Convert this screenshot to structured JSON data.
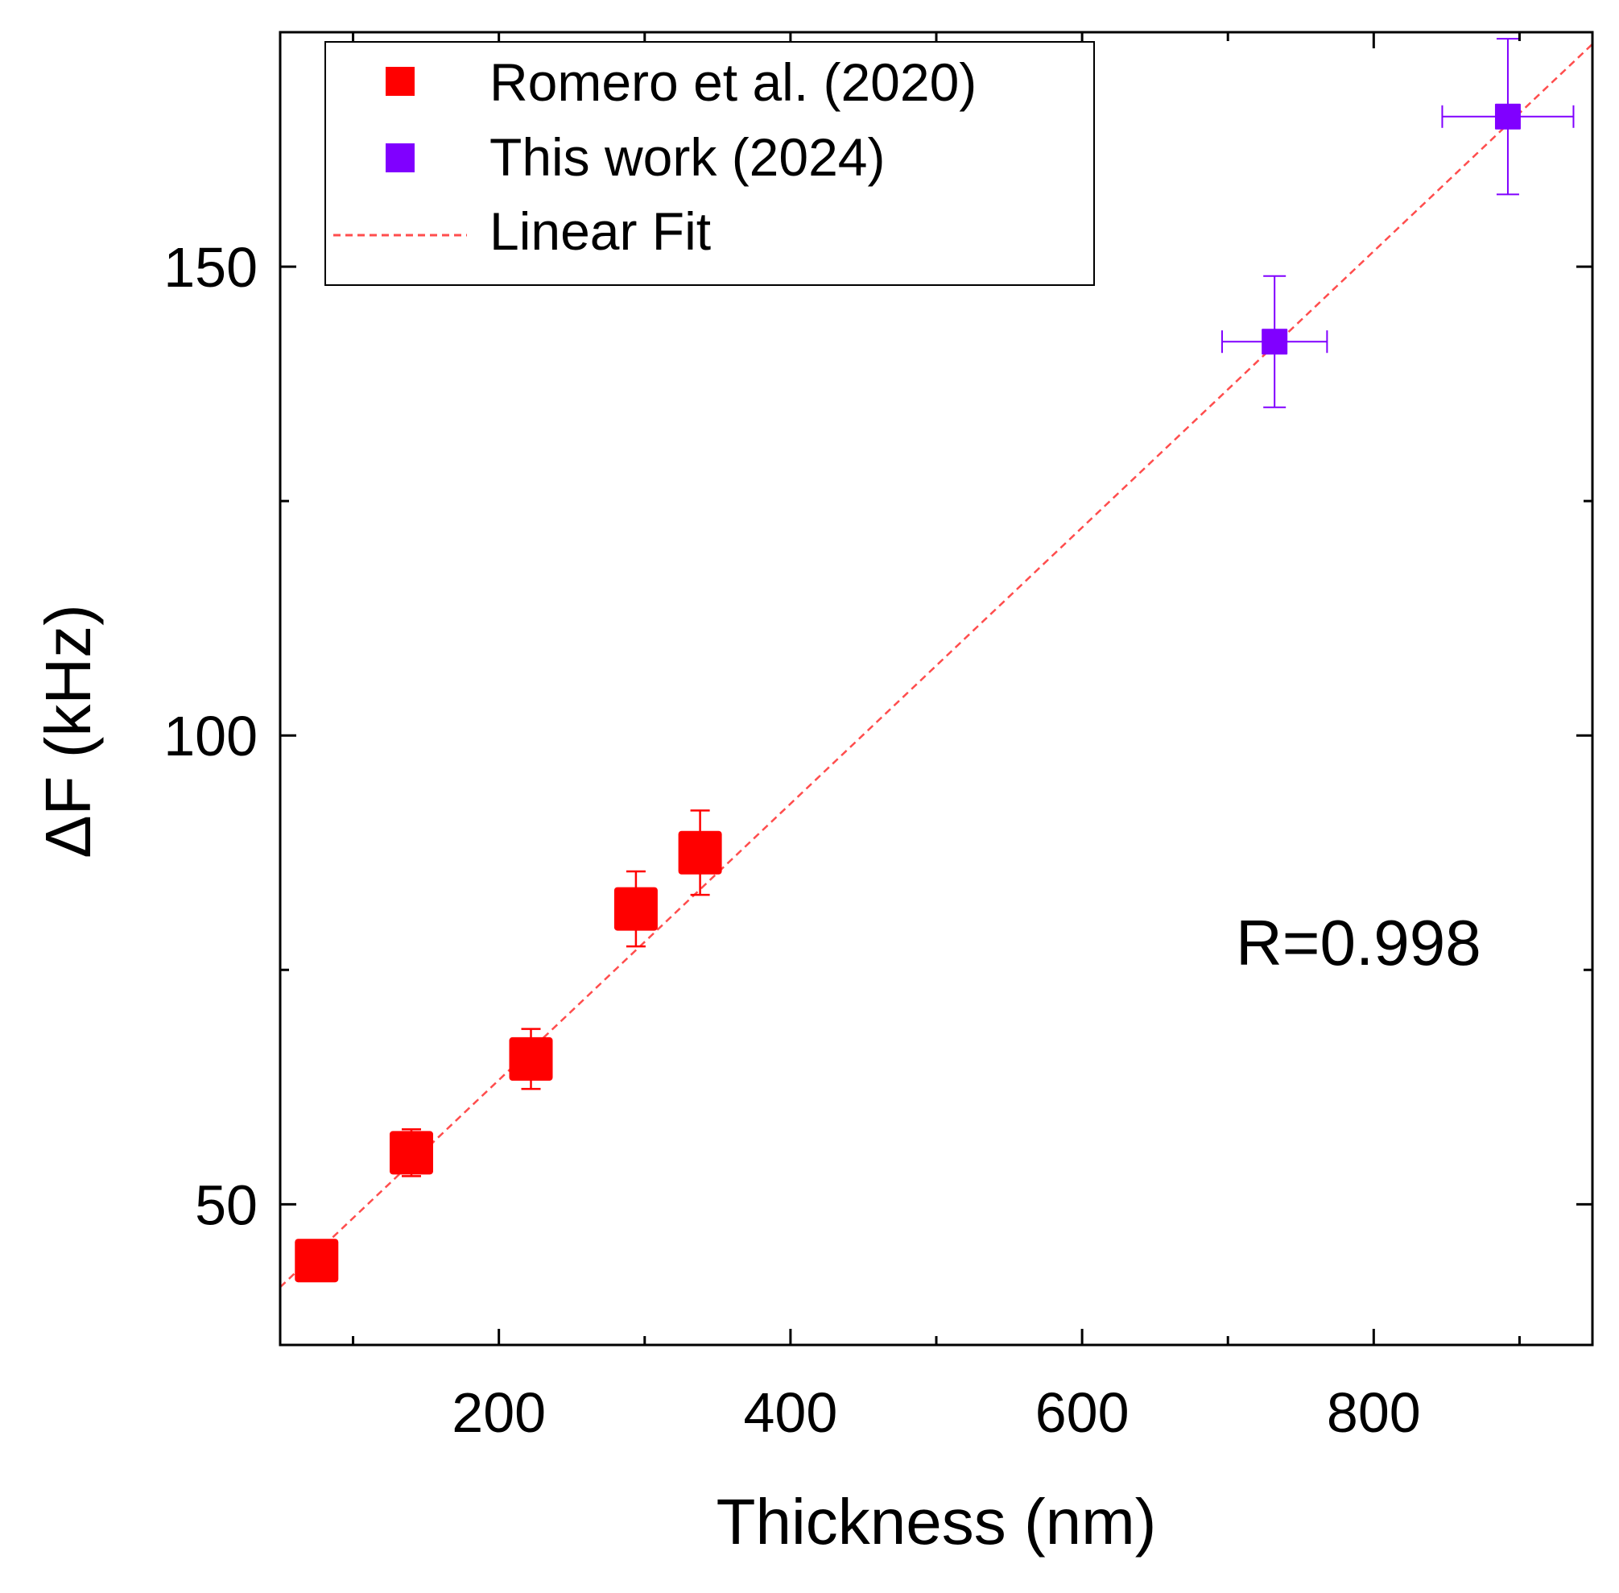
{
  "chart_data": {
    "type": "scatter",
    "title": "",
    "xlabel": "Thickness (nm)",
    "ylabel": "ΔF (kHz)",
    "xlim": [
      50,
      950
    ],
    "ylim": [
      35,
      175
    ],
    "x_major_ticks": [
      200,
      400,
      600,
      800
    ],
    "x_minor_ticks": [
      100,
      300,
      500,
      700,
      900
    ],
    "y_major_ticks": [
      50,
      100,
      150
    ],
    "y_minor_ticks": [
      75,
      125
    ],
    "grid": false,
    "legend_position": "top-left",
    "series": [
      {
        "name": "Romero et al. (2020)",
        "color": "#ff0000",
        "marker": "square",
        "points": [
          {
            "x": 75,
            "y": 44,
            "xerr": 0,
            "yerr": 1.5
          },
          {
            "x": 140,
            "y": 55.5,
            "xerr": 0,
            "yerr": 2.5
          },
          {
            "x": 222,
            "y": 65.5,
            "xerr": 0,
            "yerr": 3.2
          },
          {
            "x": 294,
            "y": 81.5,
            "xerr": 0,
            "yerr": 4.0
          },
          {
            "x": 338,
            "y": 87.5,
            "xerr": 12,
            "yerr": 4.5
          }
        ]
      },
      {
        "name": "This work (2024)",
        "color": "#8000ff",
        "marker": "square",
        "points": [
          {
            "x": 732,
            "y": 142,
            "xerr": 36,
            "yerr": 7
          },
          {
            "x": 892,
            "y": 166,
            "xerr": 45,
            "yerr": 8.3
          }
        ]
      }
    ],
    "fit": {
      "name": "Linear Fit",
      "color": "#ff4d4d",
      "style": "dashed",
      "x_range": [
        50,
        950
      ],
      "slope": 0.1473,
      "intercept": 33.8
    },
    "annotations": [
      {
        "text": "R=0.998",
        "x": 800,
        "y": 78.5
      }
    ]
  }
}
